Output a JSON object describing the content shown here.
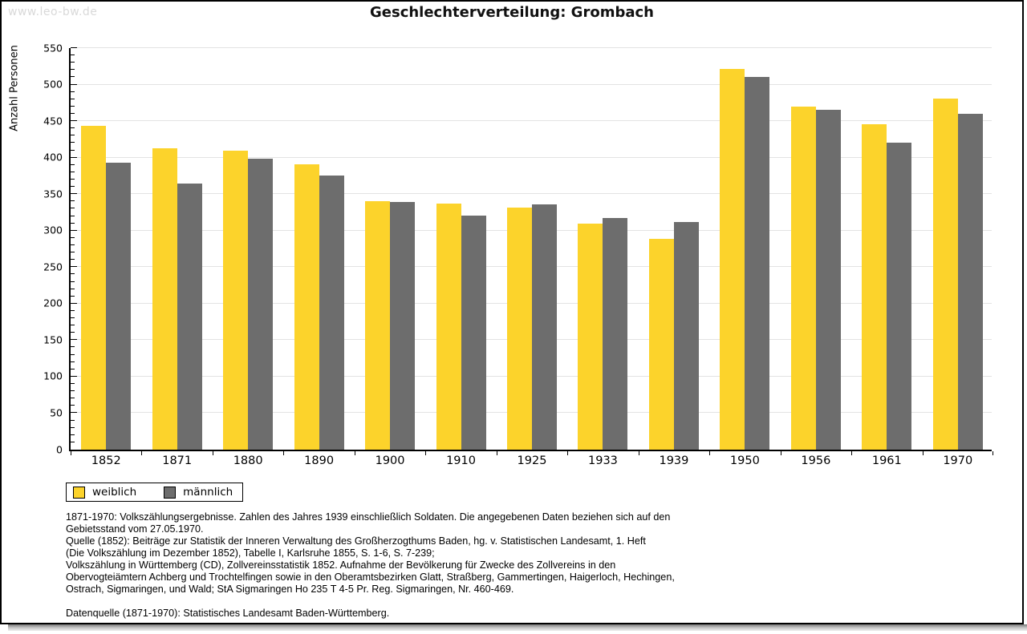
{
  "watermark": "www.leo-bw.de",
  "title": "Geschlechterverteilung: Grombach",
  "chart_data": {
    "type": "bar",
    "title": "Geschlechterverteilung: Grombach",
    "xlabel": "",
    "ylabel": "Anzahl Personen",
    "ylim": [
      0,
      550
    ],
    "ytick_step": 50,
    "minor_tick_step": 10,
    "grid": true,
    "legend_position": "bottom-left",
    "categories": [
      "1852",
      "1871",
      "1880",
      "1890",
      "1900",
      "1910",
      "1925",
      "1933",
      "1939",
      "1950",
      "1956",
      "1961",
      "1970"
    ],
    "series": [
      {
        "name": "weiblich",
        "color": "#fcd32b",
        "values": [
          443,
          413,
          409,
          391,
          340,
          337,
          332,
          310,
          289,
          522,
          470,
          446,
          481
        ]
      },
      {
        "name": "männlich",
        "color": "#6d6d6d",
        "values": [
          393,
          364,
          398,
          375,
          339,
          321,
          336,
          317,
          312,
          511,
          466,
          420,
          460
        ]
      }
    ]
  },
  "legend": {
    "items": [
      {
        "label": "weiblich",
        "color": "#fcd32b"
      },
      {
        "label": "männlich",
        "color": "#6d6d6d"
      }
    ]
  },
  "footer": {
    "lines": [
      "1871-1970: Volkszählungsergebnisse. Zahlen des Jahres 1939 einschließlich Soldaten. Die angegebenen Daten beziehen sich auf den",
      "Gebietsstand vom 27.05.1970.",
      "Quelle (1852): Beiträge zur Statistik der Inneren Verwaltung des Großherzogthums Baden, hg. v. Statistischen Landesamt, 1. Heft",
      "(Die Volkszählung im Dezember 1852), Tabelle I, Karlsruhe 1855, S. 1-6, S. 7-239;",
      "Volkszählung in Württemberg (CD), Zollvereinsstatistik 1852. Aufnahme der Bevölkerung für Zwecke des Zollvereins in den",
      "Obervogteiämtern Achberg und Trochtelfingen sowie in den Oberamtsbezirken Glatt, Straßberg, Gammertingen, Haigerloch, Hechingen,",
      "Ostrach, Sigmaringen, und Wald; StA Sigmaringen Ho 235 T 4-5 Pr. Reg. Sigmaringen, Nr. 460-469.",
      "",
      "Datenquelle (1871-1970): Statistisches Landesamt Baden-Württemberg."
    ]
  }
}
